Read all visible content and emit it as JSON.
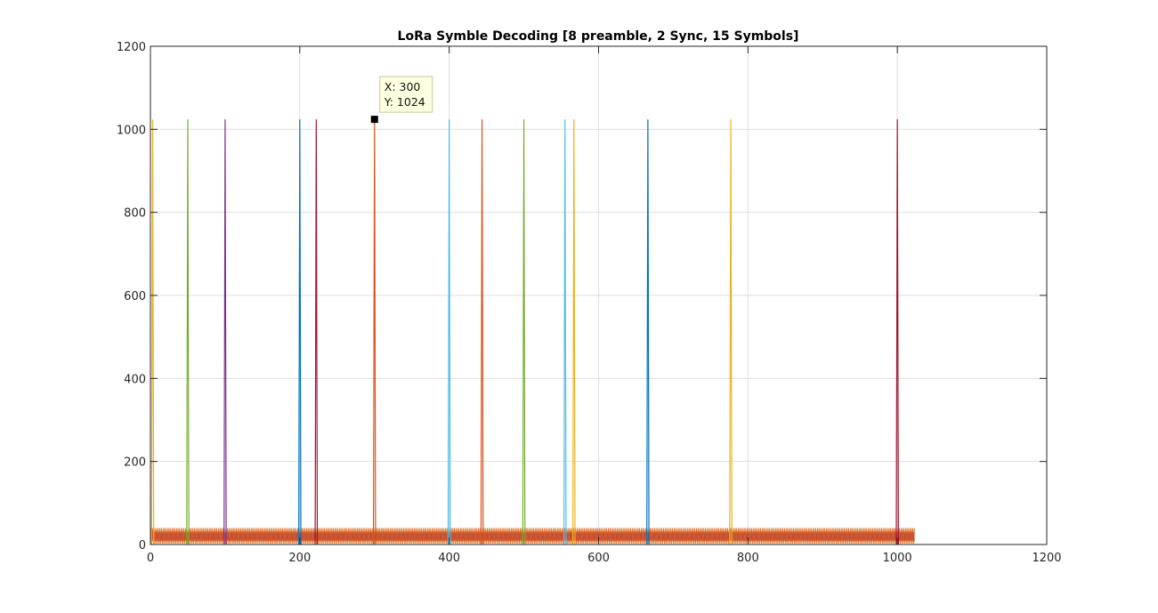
{
  "chart_data": {
    "type": "line",
    "title": "LoRa Symble Decoding [8 preamble, 2 Sync, 15 Symbols]",
    "xlabel": "",
    "ylabel": "",
    "xlim": [
      0,
      1200
    ],
    "ylim": [
      0,
      1200
    ],
    "xticks": [
      "0",
      "200",
      "400",
      "600",
      "800",
      "1000",
      "1200"
    ],
    "yticks": [
      "0",
      "200",
      "400",
      "600",
      "800",
      "1000",
      "1200"
    ],
    "grid": true,
    "noise_floor": {
      "x_range": [
        0,
        1023
      ],
      "max_value": 40
    },
    "peaks": [
      {
        "x": 3,
        "y": 1024,
        "color": "#EDB120"
      },
      {
        "x": 50,
        "y": 1024,
        "color": "#77AC30"
      },
      {
        "x": 100,
        "y": 1024,
        "color": "#7E2F8E"
      },
      {
        "x": 200,
        "y": 1024,
        "color": "#0072BD"
      },
      {
        "x": 222,
        "y": 1024,
        "color": "#A2142F"
      },
      {
        "x": 300,
        "y": 1024,
        "color": "#D95319"
      },
      {
        "x": 400,
        "y": 1024,
        "color": "#4DBEEE"
      },
      {
        "x": 444,
        "y": 1024,
        "color": "#D95319"
      },
      {
        "x": 500,
        "y": 1024,
        "color": "#77AC30"
      },
      {
        "x": 555,
        "y": 1024,
        "color": "#4DBEEE"
      },
      {
        "x": 567,
        "y": 1024,
        "color": "#EDB120"
      },
      {
        "x": 666,
        "y": 1024,
        "color": "#0072BD"
      },
      {
        "x": 777,
        "y": 1024,
        "color": "#EDB120"
      },
      {
        "x": 1000,
        "y": 1024,
        "color": "#A2142F"
      }
    ],
    "datatip": {
      "x_label": "X: 300",
      "y_label": "Y: 1024",
      "x": 300,
      "y": 1024
    }
  }
}
